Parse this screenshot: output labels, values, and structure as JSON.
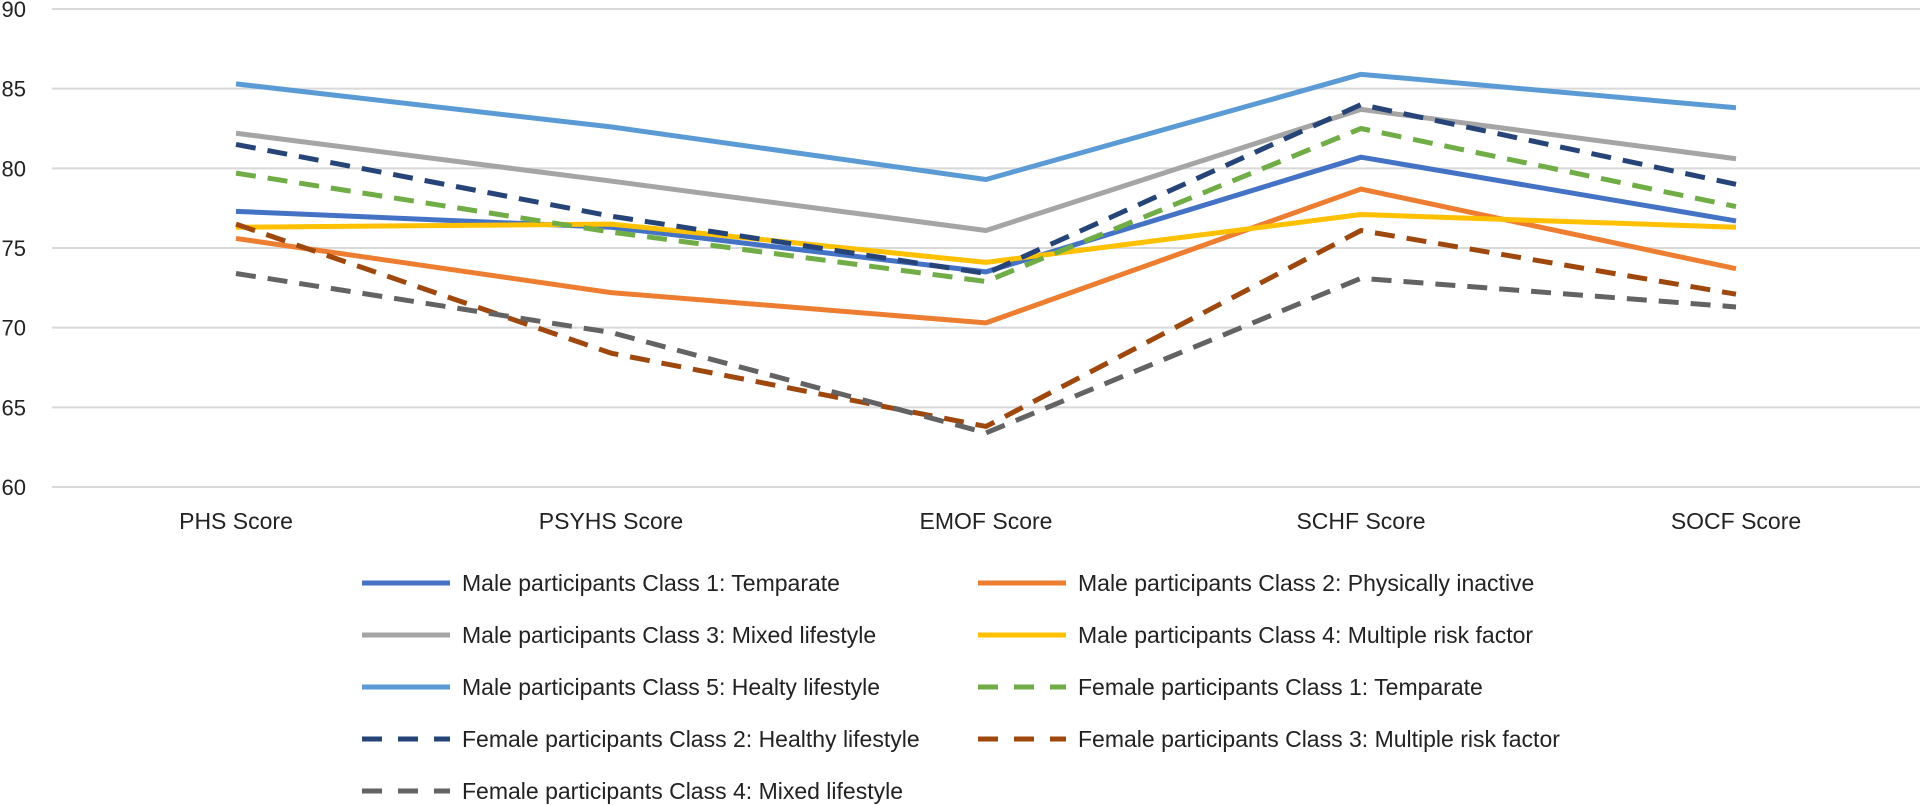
{
  "chart_data": {
    "type": "line",
    "title": "",
    "xlabel": "",
    "ylabel": "",
    "ylim": [
      60,
      90
    ],
    "yticks": [
      60,
      65,
      70,
      75,
      80,
      85,
      90
    ],
    "grid": true,
    "legend_position": "bottom",
    "categories": [
      "PHS Score",
      "PSYHS Score",
      "EMOF Score",
      "SCHF Score",
      "SOCF Score"
    ],
    "series": [
      {
        "name": "Male participants Class 1: Temparate",
        "color": "#4472C4",
        "dash": "solid",
        "values": [
          77.3,
          76.3,
          73.5,
          80.7,
          76.7
        ]
      },
      {
        "name": "Male participants Class 2: Physically inactive",
        "color": "#ED7D31",
        "dash": "solid",
        "values": [
          75.6,
          72.2,
          70.3,
          78.7,
          73.7
        ]
      },
      {
        "name": "Male participants Class 3: Mixed lifestyle",
        "color": "#A5A5A5",
        "dash": "solid",
        "values": [
          82.2,
          79.2,
          76.1,
          83.7,
          80.6
        ]
      },
      {
        "name": "Male participants Class 4: Multiple risk factor",
        "color": "#FFC000",
        "dash": "solid",
        "values": [
          76.3,
          76.5,
          74.1,
          77.1,
          76.3
        ]
      },
      {
        "name": "Male participants Class 5: Healty lifestyle",
        "color": "#5B9BD5",
        "dash": "solid",
        "values": [
          85.3,
          82.6,
          79.3,
          85.9,
          83.8
        ]
      },
      {
        "name": "Female participants Class 1: Temparate",
        "color": "#70AD47",
        "dash": "dashed",
        "values": [
          79.7,
          76.0,
          72.9,
          82.5,
          77.6
        ]
      },
      {
        "name": "Female participants Class 2: Healthy lifestyle",
        "color": "#264478",
        "dash": "dashed",
        "values": [
          81.5,
          77.0,
          73.4,
          84.0,
          79.0
        ]
      },
      {
        "name": "Female participants Class 3: Multiple risk factor",
        "color": "#9E480E",
        "dash": "dashed",
        "values": [
          76.5,
          68.4,
          63.8,
          76.1,
          72.1
        ]
      },
      {
        "name": "Female participants Class 4: Mixed lifestyle",
        "color": "#636363",
        "dash": "dashed",
        "values": [
          73.4,
          69.7,
          63.4,
          73.1,
          71.3
        ]
      }
    ]
  }
}
